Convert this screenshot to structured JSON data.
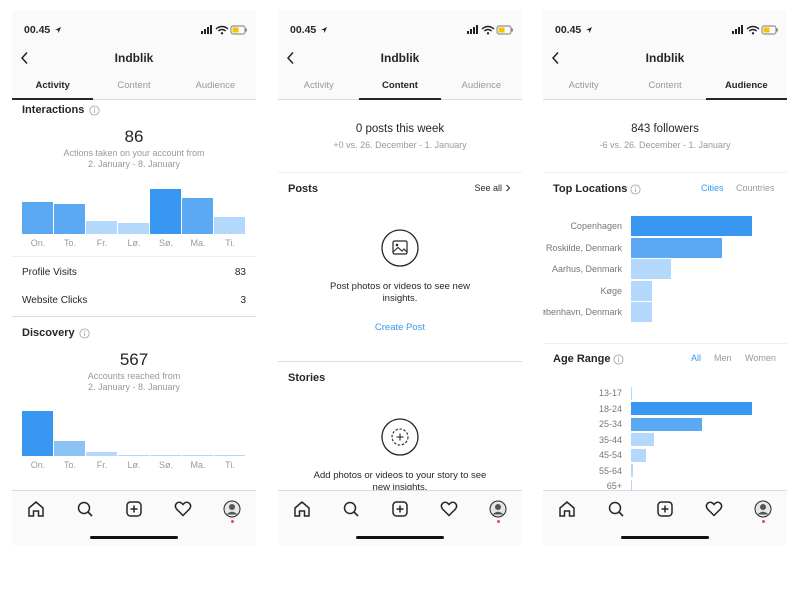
{
  "phones": [
    {
      "status_time": "00.45",
      "title": "Indblik",
      "tabs": [
        "Activity",
        "Content",
        "Audience"
      ],
      "active_tab": 0
    },
    {
      "status_time": "00.45",
      "title": "Indblik",
      "tabs": [
        "Activity",
        "Content",
        "Audience"
      ],
      "active_tab": 1
    },
    {
      "status_time": "00.45",
      "title": "Indblik",
      "tabs": [
        "Activity",
        "Content",
        "Audience"
      ],
      "active_tab": 2
    }
  ],
  "activity": {
    "interactions": {
      "heading": "Interactions",
      "total": 86,
      "caption": [
        "Actions taken on your account from",
        "2. January - 8. January"
      ],
      "chart": {
        "type": "bar",
        "categories": [
          "On.",
          "To.",
          "Fr.",
          "Lø.",
          "Sø.",
          "Ma.",
          "Ti."
        ],
        "values": [
          15,
          14,
          6,
          5,
          21,
          17,
          8
        ],
        "colors": [
          "#5aa9f2",
          "#5aa9f2",
          "#b3d8fb",
          "#b3d8fb",
          "#3897f0",
          "#5aa9f2",
          "#b3d8fb"
        ],
        "ylim": [
          0,
          21
        ]
      }
    },
    "stats": [
      {
        "label": "Profile Visits",
        "value": 83
      },
      {
        "label": "Website Clicks",
        "value": 3
      }
    ],
    "discovery": {
      "heading": "Discovery",
      "total": 567,
      "caption": [
        "Accounts reached from",
        "2. January - 8. January"
      ],
      "chart": {
        "type": "bar",
        "categories": [
          "On.",
          "To.",
          "Fr.",
          "Lø.",
          "Sø.",
          "Ma.",
          "Ti."
        ],
        "values": [
          45,
          15,
          4,
          1,
          1,
          1,
          1
        ],
        "colors": [
          "#3897f0",
          "#8cc3f7",
          "#b3d8fb",
          "#b3d8fb",
          "#b3d8fb",
          "#b3d8fb",
          "#b3d8fb"
        ],
        "ylim": [
          0,
          45
        ]
      }
    }
  },
  "content": {
    "summary": "0 posts this week",
    "comparison": "+0 vs. 26. December - 1. January",
    "posts": {
      "heading": "Posts",
      "link": "See all",
      "message": "Post photos or videos to see new insights.",
      "action": "Create Post"
    },
    "stories": {
      "heading": "Stories",
      "message": "Add photos or videos to your story to see new insights."
    }
  },
  "audience": {
    "summary": "843 followers",
    "comparison": "-6 vs. 26. December - 1. January",
    "locations": {
      "heading": "Top Locations",
      "filters": [
        "Cities",
        "Countries"
      ],
      "active_filter": 0,
      "chart": {
        "type": "bar",
        "orientation": "horizontal",
        "categories": [
          "Copenhagen",
          "Roskilde, Denmark",
          "Aarhus, Denmark",
          "Køge",
          "København, Denmark"
        ],
        "values": [
          100,
          75,
          33,
          17,
          17
        ],
        "colors": [
          "#3897f0",
          "#5aa9f2",
          "#b3d8fb",
          "#b3d8fb",
          "#b3d8fb"
        ],
        "xlim": [
          0,
          100
        ]
      }
    },
    "age": {
      "heading": "Age Range",
      "filters": [
        "All",
        "Men",
        "Women"
      ],
      "active_filter": 0,
      "chart": {
        "type": "bar",
        "orientation": "horizontal",
        "categories": [
          "13-17",
          "18-24",
          "25-34",
          "35-44",
          "45-54",
          "55-64",
          "65+"
        ],
        "values": [
          1,
          100,
          59,
          19,
          12,
          2,
          1
        ],
        "colors": [
          "#b3d8fb",
          "#3897f0",
          "#5aa9f2",
          "#b3d8fb",
          "#b3d8fb",
          "#b3d8fb",
          "#b3d8fb"
        ],
        "xlim": [
          0,
          100
        ]
      }
    }
  }
}
